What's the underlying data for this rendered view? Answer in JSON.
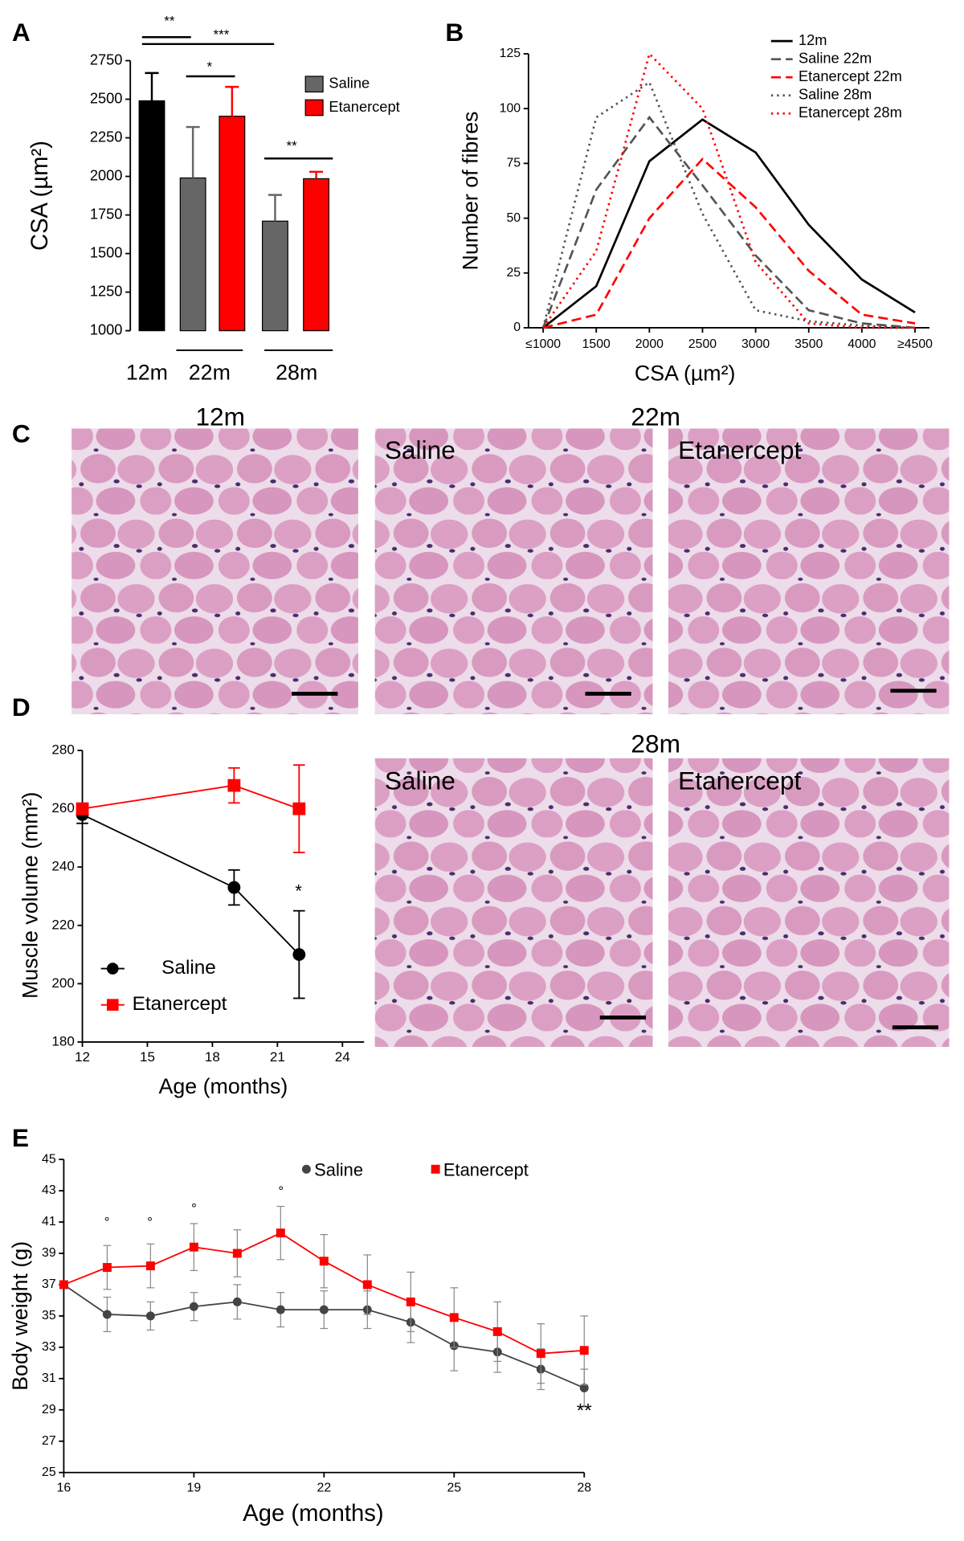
{
  "panel_labels": [
    "A",
    "B",
    "C",
    "D",
    "E"
  ],
  "histology": {
    "titles": [
      "12m",
      "22m",
      "28m"
    ],
    "labels": [
      "Saline",
      "Etanercept",
      "Saline",
      "Etanercept"
    ]
  },
  "chart_data": [
    {
      "type": "bar",
      "y_label": "CSA (µm²)",
      "categories": [
        "12m",
        "22m",
        "28m"
      ],
      "series": [
        {
          "color": "#000000",
          "values": [
            2490,
            null,
            null
          ],
          "errors": [
            180,
            null,
            null
          ]
        },
        {
          "name": "Saline",
          "color": "#666666",
          "values": [
            null,
            1990,
            1710
          ],
          "errors": [
            null,
            330,
            170
          ]
        },
        {
          "name": "Etanercept",
          "color": "#ff0000",
          "values": [
            null,
            2390,
            1985
          ],
          "errors": [
            null,
            190,
            45
          ]
        }
      ],
      "ylim": [
        1000,
        2750
      ],
      "yticks": [
        1000,
        1250,
        1500,
        1750,
        2000,
        2250,
        2500,
        2750
      ],
      "annotations": [
        "**",
        "***",
        "*",
        "**"
      ]
    },
    {
      "type": "line",
      "x_label": "CSA (µm²)",
      "y_label": "Number of fibres",
      "categories": [
        "≤1000",
        "1500",
        "2000",
        "2500",
        "3000",
        "3500",
        "4000",
        "≥4500"
      ],
      "series": [
        {
          "name": "12m",
          "color": "#000000",
          "style": "solid",
          "values": [
            0,
            19,
            76,
            95,
            80,
            47,
            22,
            7
          ]
        },
        {
          "name": "Saline 22m",
          "color": "#555555",
          "style": "dashed",
          "values": [
            0,
            63,
            96,
            65,
            33,
            8,
            2,
            0
          ]
        },
        {
          "name": "Etanercept 22m",
          "color": "#ff0000",
          "style": "dashed",
          "values": [
            0,
            6,
            50,
            77,
            55,
            26,
            6,
            2
          ]
        },
        {
          "name": "Saline 28m",
          "color": "#555555",
          "style": "dotted",
          "values": [
            0,
            96,
            112,
            52,
            8,
            3,
            1,
            0
          ]
        },
        {
          "name": "Etanercept 28m",
          "color": "#ff0000",
          "style": "dotted",
          "values": [
            0,
            35,
            125,
            100,
            30,
            2,
            0,
            0
          ]
        }
      ],
      "ylim": [
        0,
        125
      ],
      "yticks": [
        0,
        25,
        50,
        75,
        100,
        125
      ]
    },
    {
      "type": "line",
      "x_label": "Age (months)",
      "y_label": "Muscle volume (mm²)",
      "x": [
        12,
        19,
        22
      ],
      "series": [
        {
          "name": "Saline",
          "color": "#000000",
          "marker": "circle",
          "values": [
            258,
            233,
            210
          ],
          "errors": [
            3,
            6,
            15
          ]
        },
        {
          "name": "Etanercept",
          "color": "#ff0000",
          "marker": "square",
          "values": [
            260,
            268,
            260
          ],
          "errors": [
            1,
            6,
            15
          ]
        }
      ],
      "xlim": [
        12,
        25
      ],
      "xticks": [
        12,
        15,
        18,
        21,
        24
      ],
      "ylim": [
        180,
        280
      ],
      "yticks": [
        180,
        200,
        220,
        240,
        260,
        280
      ],
      "annotations": [
        "*"
      ]
    },
    {
      "type": "line",
      "x_label": "Age (months)",
      "y_label": "Body weight (g)",
      "x": [
        16,
        17,
        18,
        19,
        20,
        21,
        22,
        23,
        24,
        25,
        26,
        27,
        28
      ],
      "series": [
        {
          "name": "Saline",
          "color": "#444444",
          "marker": "circle",
          "values": [
            37,
            35.1,
            35.0,
            35.6,
            35.9,
            35.4,
            35.4,
            35.4,
            34.6,
            33.1,
            32.7,
            31.6,
            30.4
          ],
          "errors": [
            0,
            1.1,
            0.9,
            0.9,
            1.1,
            1.1,
            1.2,
            1.2,
            1.3,
            1.6,
            1.3,
            1.3,
            1.2
          ]
        },
        {
          "name": "Etanercept",
          "color": "#ff0000",
          "marker": "square",
          "values": [
            37,
            38.1,
            38.2,
            39.4,
            39.0,
            40.3,
            38.5,
            37.0,
            35.9,
            34.9,
            34.0,
            32.6,
            32.8
          ],
          "errors": [
            0,
            1.4,
            1.4,
            1.5,
            1.5,
            1.7,
            1.7,
            1.9,
            1.9,
            1.9,
            1.9,
            1.9,
            2.2
          ]
        }
      ],
      "xlim": [
        16,
        28
      ],
      "xticks": [
        16,
        19,
        22,
        25,
        28
      ],
      "ylim": [
        25,
        45
      ],
      "yticks": [
        25,
        27,
        29,
        31,
        33,
        35,
        37,
        39,
        41,
        43,
        45
      ],
      "annotations": [
        "°",
        "°",
        "°",
        "°",
        "**"
      ]
    }
  ]
}
